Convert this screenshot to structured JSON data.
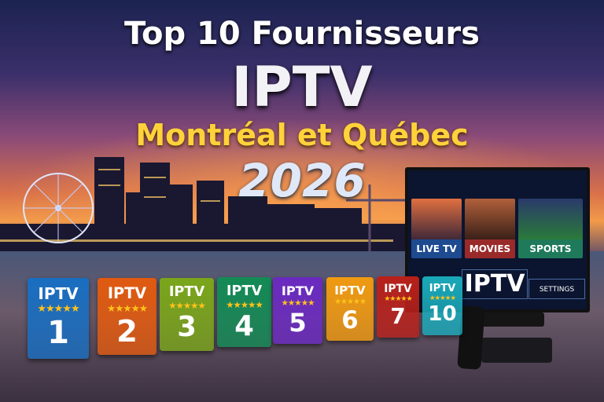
{
  "title": {
    "line1": "Top 10 Fournisseurs",
    "line2": "IPTV",
    "line3": "Montréal et Québec",
    "line4": "2026"
  },
  "cards": [
    {
      "label": "IPTV",
      "stars": "★★★★★",
      "rank": "1",
      "color": "#1a6ec0"
    },
    {
      "label": "IPTV",
      "stars": "★★★★★",
      "rank": "2",
      "color": "#e05a10"
    },
    {
      "label": "IPTV",
      "stars": "★★★★★",
      "rank": "3",
      "color": "#7aa51a"
    },
    {
      "label": "IPTV",
      "stars": "★★★★★",
      "rank": "4",
      "color": "#138a55"
    },
    {
      "label": "IPTV",
      "stars": "★★★★★",
      "rank": "5",
      "color": "#6a2ac0"
    },
    {
      "label": "IPTV",
      "stars": "★★★★★",
      "rank": "6",
      "color": "#f09a10"
    },
    {
      "label": "IPTV",
      "stars": "★★★★★",
      "rank": "7",
      "color": "#b8201a"
    },
    {
      "label": "IPTV",
      "stars": "★★★★★",
      "rank": "10",
      "color": "#1aa8b8"
    }
  ],
  "tv": {
    "tiles": [
      "LIVE TV",
      "MOVIES",
      "SPORTS"
    ],
    "brand": "IPTV",
    "settings": "SETTINGS"
  }
}
